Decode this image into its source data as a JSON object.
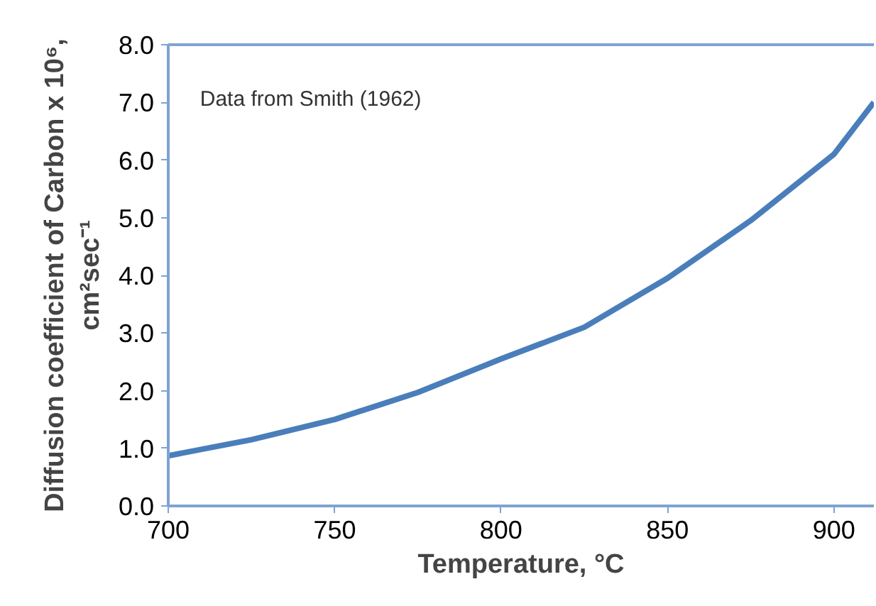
{
  "chart_data": {
    "type": "line",
    "xlabel": "Temperature, °C",
    "ylabel": "Diffusion coefficient of Carbon x 10⁶,\ncm²sec⁻¹",
    "annotations": [
      "Data from Smith (1962)"
    ],
    "x": [
      700,
      725,
      750,
      775,
      800,
      825,
      850,
      875,
      900,
      912
    ],
    "series": [
      {
        "color": "#4a7ebb",
        "values": [
          0.87,
          1.15,
          1.5,
          1.97,
          2.55,
          3.1,
          3.95,
          4.95,
          6.1,
          7.0
        ]
      }
    ],
    "xlim": [
      700,
      912
    ],
    "xticks": [
      700,
      750,
      800,
      850,
      900
    ],
    "ylim": [
      0,
      8
    ],
    "yticks": [
      {
        "value": 0,
        "label": "0.0"
      },
      {
        "value": 1,
        "label": "1.0"
      },
      {
        "value": 2,
        "label": "2.0"
      },
      {
        "value": 3,
        "label": "3.0"
      },
      {
        "value": 4,
        "label": "4.0"
      },
      {
        "value": 5,
        "label": "5.0"
      },
      {
        "value": 6,
        "label": "6.0"
      },
      {
        "value": 7,
        "label": "7.0"
      },
      {
        "value": 8,
        "label": "8.0"
      }
    ],
    "grid": false,
    "marker": "none",
    "line_style": "solid"
  }
}
